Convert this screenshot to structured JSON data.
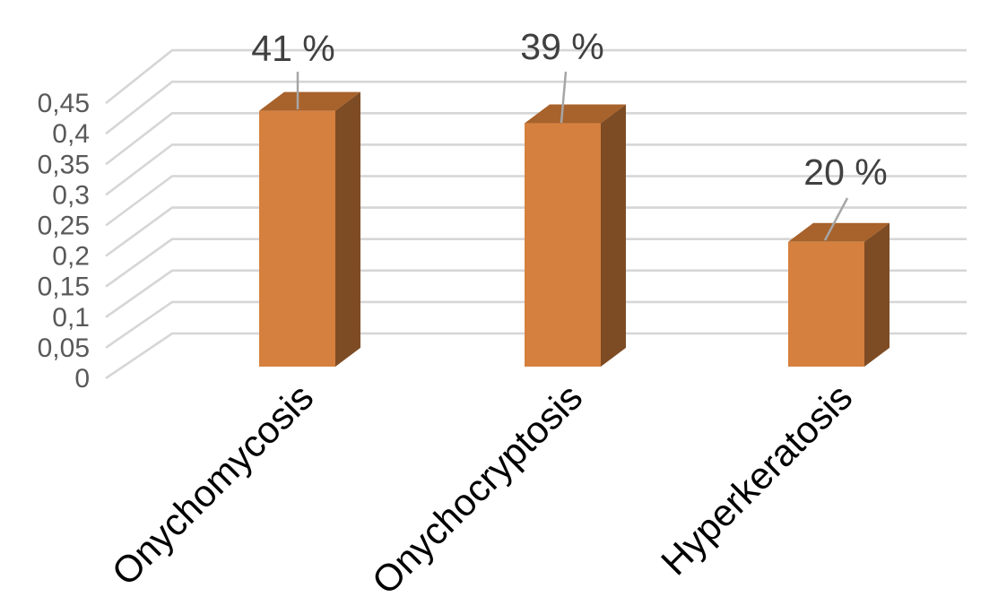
{
  "page": {
    "background": "#FFFFFF",
    "title": ""
  },
  "chart_data": {
    "type": "bar",
    "style": "3d-column",
    "title": "",
    "xlabel": "",
    "ylabel": "",
    "legend": false,
    "grid": true,
    "decimal_separator": ",",
    "categories": [
      "Onychomycosis",
      "Onychocryptosis",
      "Hyperkeratosis"
    ],
    "values": [
      0.41,
      0.39,
      0.2
    ],
    "data_labels": [
      "41 %",
      "39 %",
      "20 %"
    ],
    "ylim": [
      0,
      0.45
    ],
    "yticks": [
      {
        "label": "0",
        "value": 0
      },
      {
        "label": "0,05",
        "value": 0.05
      },
      {
        "label": "0,1",
        "value": 0.1
      },
      {
        "label": "0,15",
        "value": 0.15
      },
      {
        "label": "0,2",
        "value": 0.2
      },
      {
        "label": "0,25",
        "value": 0.25
      },
      {
        "label": "0,3",
        "value": 0.3
      },
      {
        "label": "0,35",
        "value": 0.35
      },
      {
        "label": "0,4",
        "value": 0.4
      },
      {
        "label": "0,45",
        "value": 0.45
      }
    ],
    "colors": {
      "bar_front": "#D5803E",
      "bar_top": "#A8622B",
      "bar_side": "#7E4C24",
      "gridline": "#D6D6D6",
      "tick_label": "#595959",
      "data_label": "#404040",
      "leader_line": "#A6A6A6",
      "category_label": "#000000",
      "background": "#FFFFFF"
    }
  }
}
